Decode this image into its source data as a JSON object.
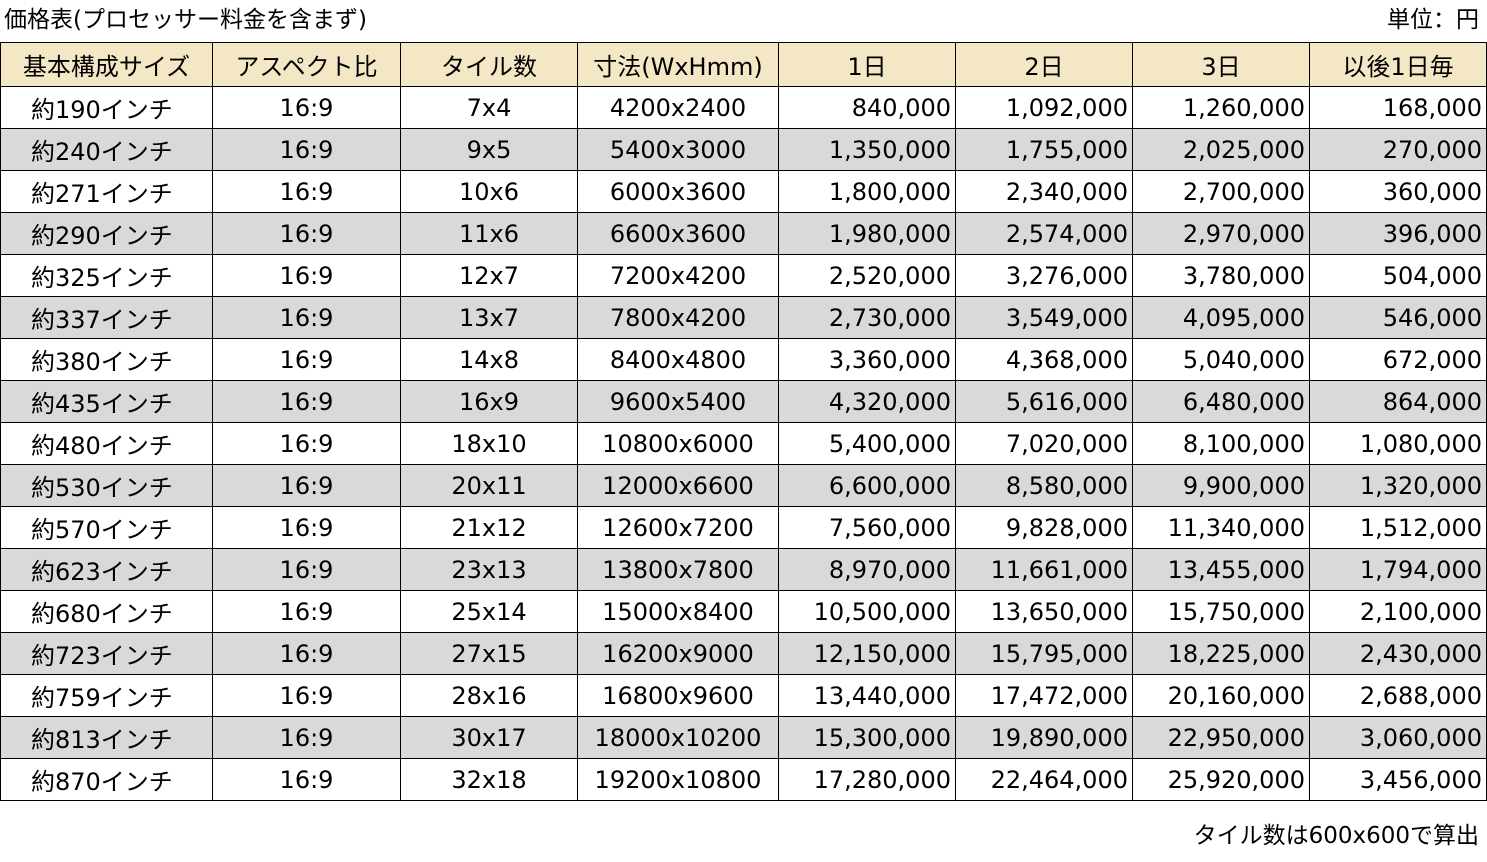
{
  "header": {
    "title": "価格表(プロセッサー料金を含まず)",
    "unit": "単位：円"
  },
  "table": {
    "columns": [
      "基本構成サイズ",
      "アスペクト比",
      "タイル数",
      "寸法(WxHmm)",
      "1日",
      "2日",
      "3日",
      "以後1日毎"
    ],
    "rows": [
      [
        "約190インチ",
        "16:9",
        "7x4",
        "4200x2400",
        "840,000",
        "1,092,000",
        "1,260,000",
        "168,000"
      ],
      [
        "約240インチ",
        "16:9",
        "9x5",
        "5400x3000",
        "1,350,000",
        "1,755,000",
        "2,025,000",
        "270,000"
      ],
      [
        "約271インチ",
        "16:9",
        "10x6",
        "6000x3600",
        "1,800,000",
        "2,340,000",
        "2,700,000",
        "360,000"
      ],
      [
        "約290インチ",
        "16:9",
        "11x6",
        "6600x3600",
        "1,980,000",
        "2,574,000",
        "2,970,000",
        "396,000"
      ],
      [
        "約325インチ",
        "16:9",
        "12x7",
        "7200x4200",
        "2,520,000",
        "3,276,000",
        "3,780,000",
        "504,000"
      ],
      [
        "約337インチ",
        "16:9",
        "13x7",
        "7800x4200",
        "2,730,000",
        "3,549,000",
        "4,095,000",
        "546,000"
      ],
      [
        "約380インチ",
        "16:9",
        "14x8",
        "8400x4800",
        "3,360,000",
        "4,368,000",
        "5,040,000",
        "672,000"
      ],
      [
        "約435インチ",
        "16:9",
        "16x9",
        "9600x5400",
        "4,320,000",
        "5,616,000",
        "6,480,000",
        "864,000"
      ],
      [
        "約480インチ",
        "16:9",
        "18x10",
        "10800x6000",
        "5,400,000",
        "7,020,000",
        "8,100,000",
        "1,080,000"
      ],
      [
        "約530インチ",
        "16:9",
        "20x11",
        "12000x6600",
        "6,600,000",
        "8,580,000",
        "9,900,000",
        "1,320,000"
      ],
      [
        "約570インチ",
        "16:9",
        "21x12",
        "12600x7200",
        "7,560,000",
        "9,828,000",
        "11,340,000",
        "1,512,000"
      ],
      [
        "約623インチ",
        "16:9",
        "23x13",
        "13800x7800",
        "8,970,000",
        "11,661,000",
        "13,455,000",
        "1,794,000"
      ],
      [
        "約680インチ",
        "16:9",
        "25x14",
        "15000x8400",
        "10,500,000",
        "13,650,000",
        "15,750,000",
        "2,100,000"
      ],
      [
        "約723インチ",
        "16:9",
        "27x15",
        "16200x9000",
        "12,150,000",
        "15,795,000",
        "18,225,000",
        "2,430,000"
      ],
      [
        "約759インチ",
        "16:9",
        "28x16",
        "16800x9600",
        "13,440,000",
        "17,472,000",
        "20,160,000",
        "2,688,000"
      ],
      [
        "約813インチ",
        "16:9",
        "30x17",
        "18000x10200",
        "15,300,000",
        "19,890,000",
        "22,950,000",
        "3,060,000"
      ],
      [
        "約870インチ",
        "16:9",
        "32x18",
        "19200x10800",
        "17,280,000",
        "22,464,000",
        "25,920,000",
        "3,456,000"
      ]
    ]
  },
  "footer": {
    "note": "タイル数は600x600で算出"
  },
  "colors": {
    "header_bg": "#f3e7c6",
    "shaded_row_bg": "#d9d9d9",
    "border": "#000000"
  }
}
